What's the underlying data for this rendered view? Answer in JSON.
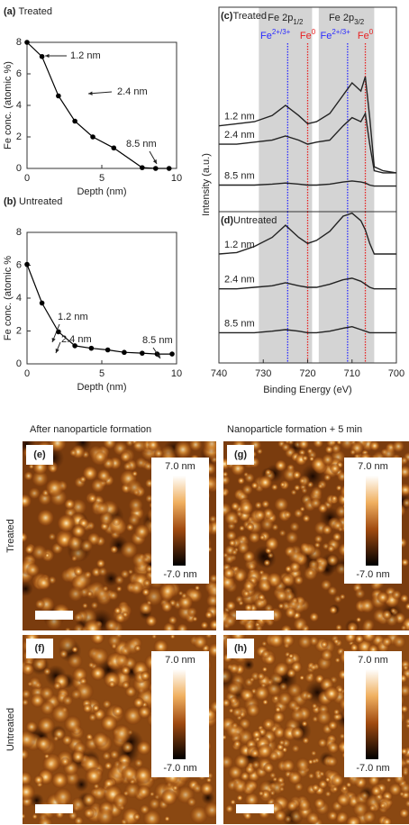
{
  "chart_data": [
    {
      "type": "line",
      "panel": "(a)",
      "title": "Treated",
      "x": [
        0,
        1,
        2.1,
        3.2,
        4.4,
        5.8,
        7.7,
        8.6,
        9.5
      ],
      "values": [
        8,
        7.1,
        4.6,
        3.0,
        2.0,
        1.3,
        0.05,
        0,
        0
      ],
      "color": "#000000",
      "xlim": [
        0,
        10
      ],
      "ylim": [
        0,
        8
      ],
      "xticks": [
        0,
        5,
        10
      ],
      "yticks": [
        0,
        2,
        4,
        6,
        8
      ],
      "xlabel": "Depth (nm)",
      "ylabel": "Fe conc. (atomic %)",
      "annotations": [
        {
          "text": "1.2 nm"
        },
        {
          "text": "2.4 nm"
        },
        {
          "text": "8.5 nm"
        }
      ]
    },
    {
      "type": "line",
      "panel": "(b)",
      "title": "Untreated",
      "x": [
        0,
        1,
        2.1,
        3.2,
        4.3,
        5.4,
        6.5,
        7.7,
        8.7,
        9.7
      ],
      "values": [
        6.05,
        3.7,
        1.95,
        1.1,
        0.95,
        0.85,
        0.7,
        0.65,
        0.6,
        0.6
      ],
      "color": "#000000",
      "xlim": [
        0,
        10
      ],
      "ylim": [
        0,
        8
      ],
      "xticks": [
        0,
        5,
        10
      ],
      "yticks": [
        0,
        2,
        4,
        6,
        8
      ],
      "xlabel": "Depth (nm)",
      "ylabel": "Fe conc. (atomic %",
      "annotations": [
        {
          "text": "1.2 nm"
        },
        {
          "text": "2.4 nm"
        },
        {
          "text": "8.5 nm"
        }
      ]
    },
    {
      "type": "spectrum",
      "panel": "(c)",
      "title": "Treated",
      "ylabel": "Intensity (a.u.)",
      "xlim": [
        740,
        700
      ],
      "ylim": [
        0,
        10
      ],
      "x": [
        740,
        736,
        732,
        728,
        725,
        722,
        720,
        718,
        715,
        712,
        710,
        708,
        707,
        706,
        705,
        703,
        700
      ],
      "series": [
        {
          "name": "1.2 nm",
          "color": "#222222",
          "values": [
            4.2,
            4.3,
            4.4,
            4.7,
            5.2,
            4.7,
            4.3,
            4.4,
            4.8,
            5.7,
            6.3,
            5.9,
            6.6,
            4.6,
            2.2,
            2.0,
            1.9
          ]
        },
        {
          "name": "2.4 nm",
          "color": "#222222",
          "values": [
            3.3,
            3.3,
            3.4,
            3.5,
            3.7,
            3.5,
            3.3,
            3.4,
            3.5,
            4.2,
            4.6,
            4.4,
            4.8,
            3.3,
            2.0,
            1.9,
            1.9
          ]
        },
        {
          "name": "8.5 nm",
          "color": "#222222",
          "values": [
            1.3,
            1.3,
            1.3,
            1.35,
            1.4,
            1.35,
            1.3,
            1.3,
            1.35,
            1.45,
            1.5,
            1.45,
            1.4,
            1.3,
            1.25,
            1.25,
            1.25
          ]
        }
      ],
      "shaded_regions": [
        [
          731,
          719
        ],
        [
          717.5,
          705
        ]
      ],
      "region_labels": [
        {
          "text": "Fe 2p",
          "sub": "1/2"
        },
        {
          "text": "Fe 2p",
          "sub": "3/2"
        }
      ],
      "reference_lines": [
        {
          "x": 724.5,
          "color": "#2a2aff",
          "label": {
            "text": "Fe",
            "sup": "2+/3+"
          }
        },
        {
          "x": 720,
          "color": "#e82020",
          "label": {
            "text": "Fe",
            "sup": "0"
          }
        },
        {
          "x": 711,
          "color": "#2a2aff",
          "label": {
            "text": "Fe",
            "sup": "2+/3+"
          }
        },
        {
          "x": 707,
          "color": "#e82020",
          "label": {
            "text": "Fe",
            "sup": "0"
          }
        }
      ]
    },
    {
      "type": "spectrum",
      "panel": "(d)",
      "title": "Untreated",
      "xlabel": "Binding Energy (eV)",
      "xlim": [
        740,
        700
      ],
      "ylim": [
        0,
        10
      ],
      "xticks": [
        740,
        730,
        720,
        710,
        700
      ],
      "x": [
        740,
        736,
        732,
        728,
        725,
        722,
        720,
        718,
        715,
        712,
        710,
        708,
        707,
        706,
        705,
        703,
        700
      ],
      "series": [
        {
          "name": "1.2 nm",
          "color": "#222222",
          "values": [
            7.2,
            7.3,
            7.7,
            8.3,
            9.1,
            8.3,
            7.9,
            8.1,
            8.7,
            9.7,
            9.9,
            9.4,
            8.8,
            7.9,
            7.2,
            7.2,
            7.2
          ]
        },
        {
          "name": "2.4 nm",
          "color": "#222222",
          "values": [
            4.9,
            4.9,
            5.0,
            5.1,
            5.3,
            5.1,
            5.0,
            5.0,
            5.2,
            5.5,
            5.6,
            5.4,
            5.2,
            5.0,
            4.9,
            4.9,
            4.9
          ]
        },
        {
          "name": "8.5 nm",
          "color": "#222222",
          "values": [
            2.0,
            2.0,
            2.0,
            2.1,
            2.2,
            2.1,
            2.0,
            2.0,
            2.1,
            2.3,
            2.4,
            2.2,
            2.1,
            2.0,
            2.0,
            2.0,
            2.0
          ]
        }
      ],
      "shaded_regions": [
        [
          731,
          719
        ],
        [
          717.5,
          705
        ]
      ],
      "reference_lines": [
        {
          "x": 724.5,
          "color": "#2a2aff"
        },
        {
          "x": 720,
          "color": "#e82020"
        },
        {
          "x": 711,
          "color": "#2a2aff"
        },
        {
          "x": 707,
          "color": "#e82020"
        }
      ]
    }
  ],
  "afm": {
    "column_titles": [
      "After nanoparticle formation",
      "Nanoparticle formation + 5 min"
    ],
    "row_labels": [
      "Treated",
      "Untreated"
    ],
    "colorbar": {
      "max": "7.0 nm",
      "min": "-7.0 nm"
    },
    "panels": [
      {
        "label": "(e)",
        "row": 0,
        "col": 0
      },
      {
        "label": "(g)",
        "row": 0,
        "col": 1
      },
      {
        "label": "(f)",
        "row": 1,
        "col": 0
      },
      {
        "label": "(h)",
        "row": 1,
        "col": 1
      }
    ]
  }
}
